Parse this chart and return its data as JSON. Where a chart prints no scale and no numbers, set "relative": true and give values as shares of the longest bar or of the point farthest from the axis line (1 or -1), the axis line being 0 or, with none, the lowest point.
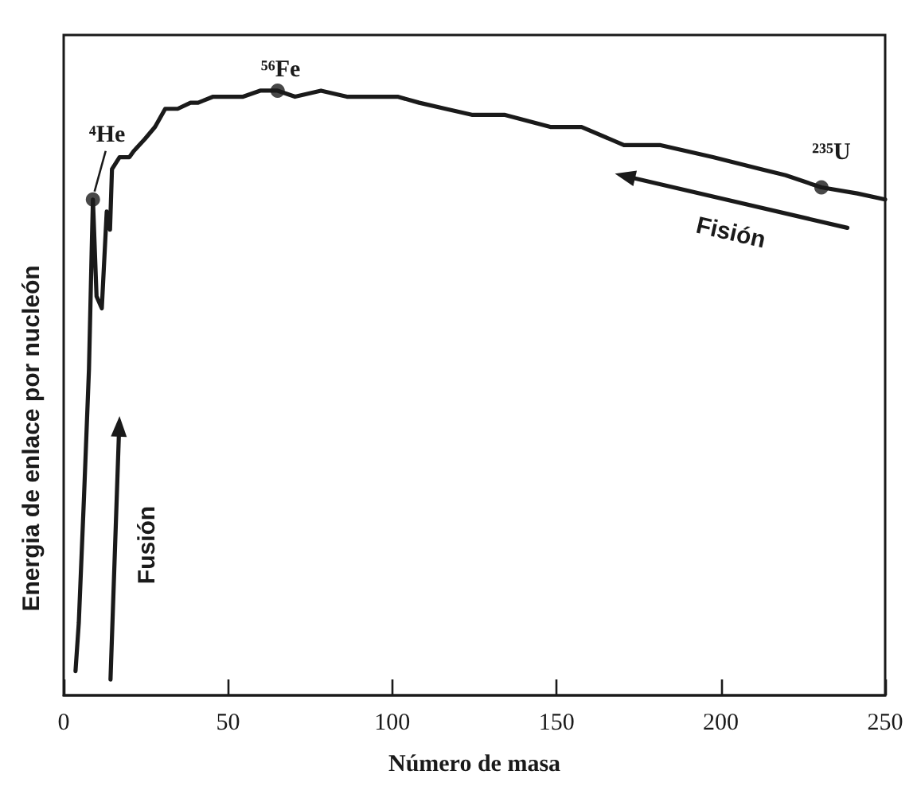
{
  "chart_data": {
    "type": "line",
    "relative": true,
    "xlabel": "Número de masa",
    "ylabel": "Energia de enlace por nucleón",
    "xlim": [
      0,
      250
    ],
    "xticks": [
      0,
      50,
      100,
      150,
      200,
      250
    ],
    "line_style": "solid",
    "series": [
      {
        "color": "#1a1a1a",
        "marker": "none",
        "x": [
          3.6,
          4.6,
          6.2,
          7.7,
          8.5,
          8.9,
          10.0,
          11.6,
          13.1,
          14.1,
          14.7,
          17.0,
          20.0,
          21.3,
          24.7,
          27.8,
          30.9,
          34.7,
          38.6,
          40.9,
          45.5,
          49.4,
          54.6,
          59.8,
          65.1,
          70.4,
          78.3,
          86.2,
          93.2,
          96.7,
          101.6,
          108.2,
          116.2,
          124.2,
          134.1,
          148.1,
          157.6,
          170.5,
          181.4,
          197.6,
          212.3,
          219.7,
          230.6,
          241.5,
          250
        ],
        "values": [
          0.04,
          0.12,
          0.33,
          0.54,
          0.73,
          0.82,
          0.66,
          0.64,
          0.8,
          0.77,
          0.87,
          0.89,
          0.89,
          0.9,
          0.92,
          0.94,
          0.97,
          0.97,
          0.98,
          0.98,
          0.99,
          0.99,
          0.99,
          1.0,
          1.0,
          0.99,
          1.0,
          0.99,
          0.99,
          0.99,
          0.99,
          0.98,
          0.97,
          0.96,
          0.96,
          0.94,
          0.94,
          0.91,
          0.91,
          0.89,
          0.87,
          0.86,
          0.84,
          0.83,
          0.82
        ]
      },
      {
        "type": "scatter",
        "color": "#1a1a1a",
        "marker": "circle",
        "x": [
          8.9,
          65.1,
          230.6
        ],
        "values": [
          0.82,
          1.0,
          0.84
        ]
      }
    ],
    "annotations": [
      {
        "text": "⁴He",
        "x": 8.9,
        "y": 0.82
      },
      {
        "text": "⁵⁶Fe",
        "x": 65.1,
        "y": 1.0
      },
      {
        "text": "²³⁵U",
        "x": 230.6,
        "y": 0.84
      },
      "Fisión",
      "Fusión"
    ]
  }
}
